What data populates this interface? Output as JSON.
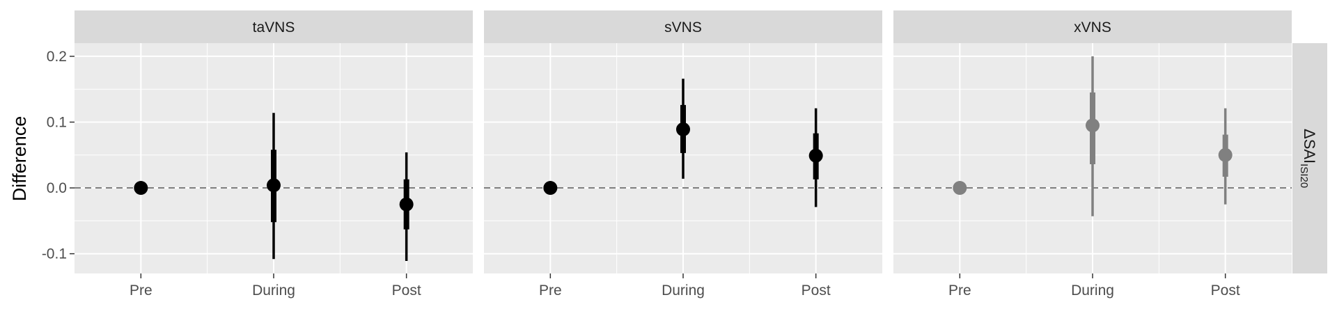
{
  "chart_data": {
    "type": "scatter",
    "subtype": "faceted point-range (point estimate with inner and outer intervals)",
    "ylabel": "Difference",
    "row_facet_label": "ΔSAI",
    "row_facet_label_subscript": "ISI20",
    "categories": [
      "Pre",
      "During",
      "Post"
    ],
    "ylim": [
      -0.13,
      0.22
    ],
    "yticks": [
      -0.1,
      0.0,
      0.1,
      0.2
    ],
    "ytick_labels": [
      "-0.1",
      "0.0",
      "0.1",
      "0.2"
    ],
    "reference_line": 0,
    "grid": true,
    "panels": [
      {
        "title": "taVNS",
        "color": "#000000",
        "points": [
          {
            "x": "Pre",
            "y": 0.0,
            "inner": [
              0.0,
              0.0
            ],
            "outer": [
              0.0,
              0.0
            ]
          },
          {
            "x": "During",
            "y": 0.004,
            "inner": [
              -0.052,
              0.058
            ],
            "outer": [
              -0.108,
              0.114
            ]
          },
          {
            "x": "Post",
            "y": -0.025,
            "inner": [
              -0.063,
              0.013
            ],
            "outer": [
              -0.111,
              0.054
            ]
          }
        ]
      },
      {
        "title": "sVNS",
        "color": "#000000",
        "points": [
          {
            "x": "Pre",
            "y": 0.0,
            "inner": [
              0.0,
              0.0
            ],
            "outer": [
              0.0,
              0.0
            ]
          },
          {
            "x": "During",
            "y": 0.089,
            "inner": [
              0.053,
              0.126
            ],
            "outer": [
              0.014,
              0.166
            ]
          },
          {
            "x": "Post",
            "y": 0.049,
            "inner": [
              0.013,
              0.083
            ],
            "outer": [
              -0.029,
              0.121
            ]
          }
        ]
      },
      {
        "title": "xVNS",
        "color": "#808080",
        "points": [
          {
            "x": "Pre",
            "y": 0.0,
            "inner": [
              0.0,
              0.0
            ],
            "outer": [
              0.0,
              0.0
            ]
          },
          {
            "x": "During",
            "y": 0.095,
            "inner": [
              0.036,
              0.145
            ],
            "outer": [
              -0.043,
              0.2
            ]
          },
          {
            "x": "Post",
            "y": 0.05,
            "inner": [
              0.017,
              0.081
            ],
            "outer": [
              -0.025,
              0.121
            ]
          }
        ]
      }
    ]
  }
}
